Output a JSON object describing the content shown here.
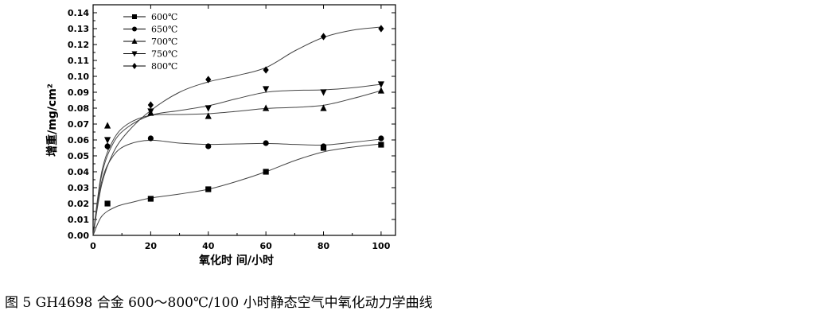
{
  "caption": "图 5 GH4698 合金 600～800℃/100 小时静态空气中氧化动力学曲线",
  "chart_data": {
    "type": "scatter",
    "xlabel": "氧化时 间/小时",
    "ylabel": "增重/mg/cm²",
    "xlim": [
      0,
      105
    ],
    "ylim": [
      0,
      0.145
    ],
    "xticks": [
      "0",
      "20",
      "40",
      "60",
      "80",
      "100"
    ],
    "yticks": [
      "0.00",
      "0.01",
      "0.02",
      "0.03",
      "0.04",
      "0.05",
      "0.06",
      "0.07",
      "0.08",
      "0.09",
      "0.10",
      "0.11",
      "0.12",
      "0.13",
      "0.14"
    ],
    "grid": false,
    "legend_position": "top-left",
    "x": [
      5,
      20,
      40,
      60,
      80,
      100
    ],
    "series": [
      {
        "name": "600℃",
        "marker": "square",
        "values": [
          0.02,
          0.023,
          0.029,
          0.04,
          0.055,
          0.057
        ],
        "fit": [
          [
            0,
            0
          ],
          [
            3,
            0.012
          ],
          [
            8,
            0.018
          ],
          [
            14,
            0.021
          ],
          [
            20,
            0.0235
          ],
          [
            30,
            0.026
          ],
          [
            40,
            0.029
          ],
          [
            50,
            0.034
          ],
          [
            60,
            0.04
          ],
          [
            70,
            0.047
          ],
          [
            80,
            0.0525
          ],
          [
            90,
            0.0555
          ],
          [
            100,
            0.0575
          ]
        ]
      },
      {
        "name": "650℃",
        "marker": "circle",
        "values": [
          0.056,
          0.061,
          0.056,
          0.058,
          0.056,
          0.061
        ],
        "fit": [
          [
            0,
            0
          ],
          [
            3,
            0.034
          ],
          [
            7,
            0.05
          ],
          [
            12,
            0.057
          ],
          [
            20,
            0.0598
          ],
          [
            30,
            0.058
          ],
          [
            40,
            0.0572
          ],
          [
            50,
            0.0575
          ],
          [
            60,
            0.0578
          ],
          [
            70,
            0.0572
          ],
          [
            80,
            0.0568
          ],
          [
            90,
            0.0585
          ],
          [
            100,
            0.0605
          ]
        ]
      },
      {
        "name": "700℃",
        "marker": "triangle-up",
        "values": [
          0.069,
          0.077,
          0.075,
          0.08,
          0.08,
          0.091
        ],
        "fit": [
          [
            0,
            0
          ],
          [
            3,
            0.04
          ],
          [
            7,
            0.06
          ],
          [
            12,
            0.07
          ],
          [
            20,
            0.0755
          ],
          [
            30,
            0.076
          ],
          [
            40,
            0.0765
          ],
          [
            50,
            0.078
          ],
          [
            60,
            0.0798
          ],
          [
            70,
            0.0805
          ],
          [
            80,
            0.0818
          ],
          [
            90,
            0.086
          ],
          [
            100,
            0.091
          ]
        ]
      },
      {
        "name": "750℃",
        "marker": "triangle-down",
        "values": [
          0.06,
          0.078,
          0.08,
          0.092,
          0.09,
          0.095
        ],
        "fit": [
          [
            0,
            0
          ],
          [
            3,
            0.038
          ],
          [
            7,
            0.058
          ],
          [
            12,
            0.068
          ],
          [
            20,
            0.0755
          ],
          [
            30,
            0.0785
          ],
          [
            40,
            0.0815
          ],
          [
            50,
            0.086
          ],
          [
            60,
            0.09
          ],
          [
            70,
            0.0912
          ],
          [
            80,
            0.0915
          ],
          [
            90,
            0.0928
          ],
          [
            100,
            0.095
          ]
        ]
      },
      {
        "name": "800℃",
        "marker": "diamond",
        "values": [
          0.056,
          0.082,
          0.098,
          0.104,
          0.125,
          0.13
        ],
        "fit": [
          [
            0,
            0
          ],
          [
            3,
            0.032
          ],
          [
            7,
            0.052
          ],
          [
            12,
            0.065
          ],
          [
            20,
            0.0785
          ],
          [
            30,
            0.09
          ],
          [
            40,
            0.0965
          ],
          [
            50,
            0.1005
          ],
          [
            60,
            0.1055
          ],
          [
            70,
            0.116
          ],
          [
            80,
            0.1245
          ],
          [
            90,
            0.129
          ],
          [
            100,
            0.131
          ]
        ]
      }
    ]
  }
}
